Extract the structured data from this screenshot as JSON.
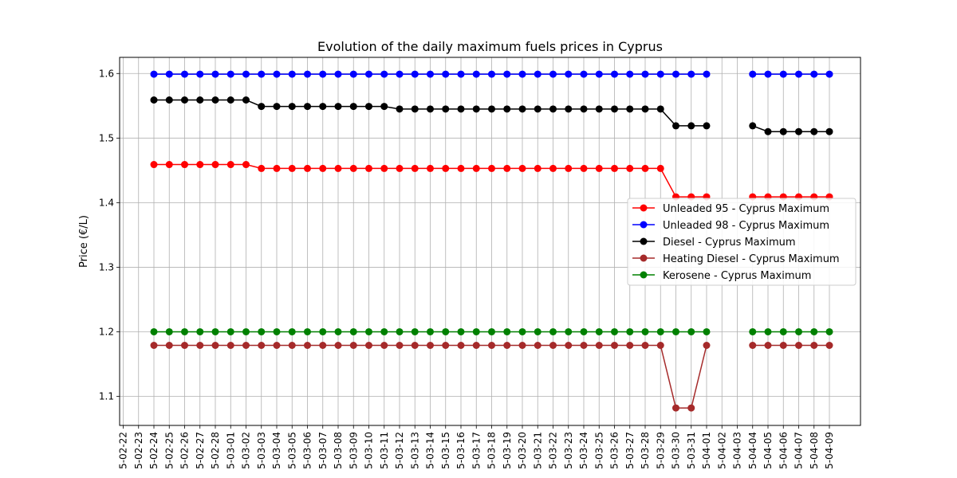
{
  "chart_data": {
    "type": "line",
    "title": "Evolution of the daily maximum fuels prices in Cyprus",
    "xlabel": "",
    "ylabel": "Price (€/L)",
    "ylim": [
      1.055,
      1.625
    ],
    "yticks": [
      1.1,
      1.2,
      1.3,
      1.4,
      1.5,
      1.6
    ],
    "ytick_labels": [
      "1.1",
      "1.2",
      "1.3",
      "1.4",
      "1.5",
      "1.6"
    ],
    "grid": true,
    "legend_position": "center-right",
    "x": [
      "5-02-22",
      "5-02-23",
      "5-02-24",
      "5-02-25",
      "5-02-26",
      "5-02-27",
      "5-02-28",
      "5-03-01",
      "5-03-02",
      "5-03-03",
      "5-03-04",
      "5-03-05",
      "5-03-06",
      "5-03-07",
      "5-03-08",
      "5-03-09",
      "5-03-10",
      "5-03-11",
      "5-03-12",
      "5-03-13",
      "5-03-14",
      "5-03-15",
      "5-03-16",
      "5-03-17",
      "5-03-18",
      "5-03-19",
      "5-03-20",
      "5-03-21",
      "5-03-22",
      "5-03-23",
      "5-03-24",
      "5-03-25",
      "5-03-26",
      "5-03-27",
      "5-03-28",
      "5-03-29",
      "5-03-30",
      "5-03-31",
      "5-04-01",
      "5-04-02",
      "5-04-03",
      "5-04-04",
      "5-04-05",
      "5-04-06",
      "5-04-07",
      "5-04-08",
      "5-04-09"
    ],
    "series": [
      {
        "name": "Unleaded 95 - Cyprus Maximum",
        "color": "#ff0000",
        "values": [
          null,
          null,
          1.459,
          1.459,
          1.459,
          1.459,
          1.459,
          1.459,
          1.459,
          1.453,
          1.453,
          1.453,
          1.453,
          1.453,
          1.453,
          1.453,
          1.453,
          1.453,
          1.453,
          1.453,
          1.453,
          1.453,
          1.453,
          1.453,
          1.453,
          1.453,
          1.453,
          1.453,
          1.453,
          1.453,
          1.453,
          1.453,
          1.453,
          1.453,
          1.453,
          1.453,
          1.409,
          1.409,
          1.409,
          null,
          null,
          1.409,
          1.409,
          1.409,
          1.409,
          1.409,
          1.409
        ]
      },
      {
        "name": "Unleaded 98 - Cyprus Maximum",
        "color": "#0000ff",
        "values": [
          null,
          null,
          1.599,
          1.599,
          1.599,
          1.599,
          1.599,
          1.599,
          1.599,
          1.599,
          1.599,
          1.599,
          1.599,
          1.599,
          1.599,
          1.599,
          1.599,
          1.599,
          1.599,
          1.599,
          1.599,
          1.599,
          1.599,
          1.599,
          1.599,
          1.599,
          1.599,
          1.599,
          1.599,
          1.599,
          1.599,
          1.599,
          1.599,
          1.599,
          1.599,
          1.599,
          1.599,
          1.599,
          1.599,
          null,
          null,
          1.599,
          1.599,
          1.599,
          1.599,
          1.599,
          1.599
        ]
      },
      {
        "name": "Diesel - Cyprus Maximum",
        "color": "#000000",
        "values": [
          null,
          null,
          1.559,
          1.559,
          1.559,
          1.559,
          1.559,
          1.559,
          1.559,
          1.549,
          1.549,
          1.549,
          1.549,
          1.549,
          1.549,
          1.549,
          1.549,
          1.549,
          1.545,
          1.545,
          1.545,
          1.545,
          1.545,
          1.545,
          1.545,
          1.545,
          1.545,
          1.545,
          1.545,
          1.545,
          1.545,
          1.545,
          1.545,
          1.545,
          1.545,
          1.545,
          1.519,
          1.519,
          1.519,
          null,
          null,
          1.519,
          1.51,
          1.51,
          1.51,
          1.51,
          1.51
        ]
      },
      {
        "name": "Heating Diesel - Cyprus Maximum",
        "color": "#a52a2a",
        "values": [
          null,
          null,
          1.179,
          1.179,
          1.179,
          1.179,
          1.179,
          1.179,
          1.179,
          1.179,
          1.179,
          1.179,
          1.179,
          1.179,
          1.179,
          1.179,
          1.179,
          1.179,
          1.179,
          1.179,
          1.179,
          1.179,
          1.179,
          1.179,
          1.179,
          1.179,
          1.179,
          1.179,
          1.179,
          1.179,
          1.179,
          1.179,
          1.179,
          1.179,
          1.179,
          1.179,
          1.082,
          1.082,
          1.179,
          null,
          null,
          1.179,
          1.179,
          1.179,
          1.179,
          1.179,
          1.179
        ]
      },
      {
        "name": "Kerosene - Cyprus Maximum",
        "color": "#008000",
        "values": [
          null,
          null,
          1.2,
          1.2,
          1.2,
          1.2,
          1.2,
          1.2,
          1.2,
          1.2,
          1.2,
          1.2,
          1.2,
          1.2,
          1.2,
          1.2,
          1.2,
          1.2,
          1.2,
          1.2,
          1.2,
          1.2,
          1.2,
          1.2,
          1.2,
          1.2,
          1.2,
          1.2,
          1.2,
          1.2,
          1.2,
          1.2,
          1.2,
          1.2,
          1.2,
          1.2,
          1.2,
          1.2,
          1.2,
          null,
          null,
          1.2,
          1.2,
          1.2,
          1.2,
          1.2,
          1.2
        ]
      }
    ]
  }
}
